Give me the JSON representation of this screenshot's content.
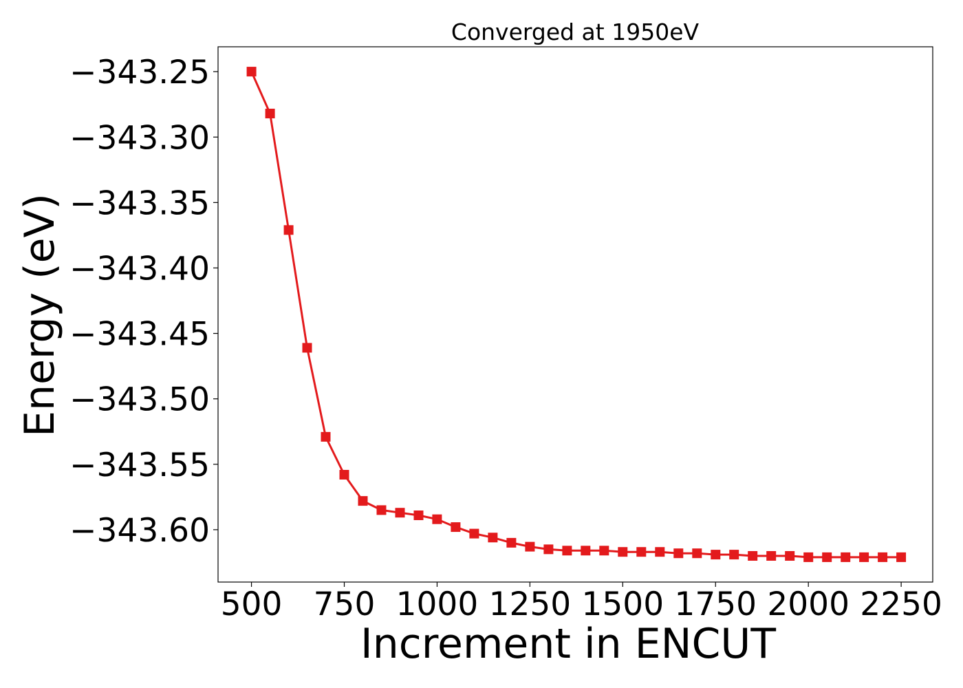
{
  "chart_data": {
    "type": "line",
    "title": "Converged at 1950eV",
    "xlabel": "Increment in ENCUT",
    "ylabel": "Energy (eV)",
    "xlim": [
      410,
      2335
    ],
    "ylim": [
      -343.64,
      -343.231
    ],
    "xticks": [
      500,
      750,
      1000,
      1250,
      1500,
      1750,
      2000,
      2250
    ],
    "xtick_labels": [
      "500",
      "750",
      "1000",
      "1250",
      "1500",
      "1750",
      "2000",
      "2250"
    ],
    "yticks": [
      -343.25,
      -343.3,
      -343.35,
      -343.4,
      -343.45,
      -343.5,
      -343.55,
      -343.6
    ],
    "ytick_labels": [
      "−343.25",
      "−343.30",
      "−343.35",
      "−343.40",
      "−343.45",
      "−343.50",
      "−343.55",
      "−343.60"
    ],
    "grid": false,
    "series": [
      {
        "color": "#e31a1c",
        "marker": "square",
        "x": [
          500,
          550,
          600,
          650,
          700,
          750,
          800,
          850,
          900,
          950,
          1000,
          1050,
          1100,
          1150,
          1200,
          1250,
          1300,
          1350,
          1400,
          1450,
          1500,
          1550,
          1600,
          1650,
          1700,
          1750,
          1800,
          1850,
          1900,
          1950,
          2000,
          2050,
          2100,
          2150,
          2200,
          2250
        ],
        "y": [
          -343.25,
          -343.282,
          -343.371,
          -343.461,
          -343.529,
          -343.558,
          -343.578,
          -343.585,
          -343.587,
          -343.589,
          -343.592,
          -343.598,
          -343.603,
          -343.606,
          -343.61,
          -343.613,
          -343.615,
          -343.616,
          -343.616,
          -343.616,
          -343.617,
          -343.617,
          -343.617,
          -343.618,
          -343.618,
          -343.619,
          -343.619,
          -343.62,
          -343.62,
          -343.62,
          -343.621,
          -343.621,
          -343.621,
          -343.621,
          -343.621,
          -343.621
        ]
      }
    ]
  }
}
